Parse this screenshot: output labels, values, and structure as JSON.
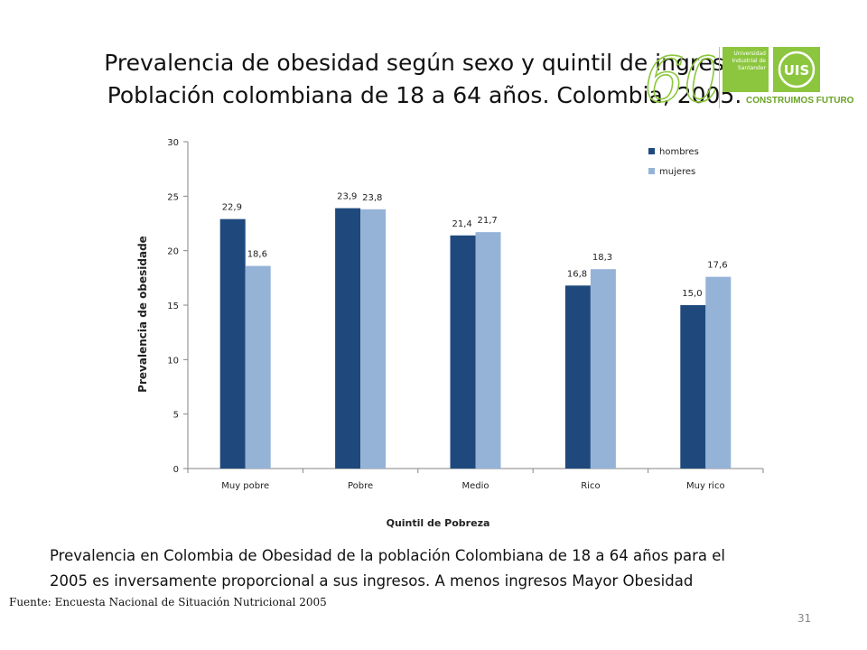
{
  "slide": {
    "title_line1": "Prevalencia de obesidad según sexo y quintil de ingreso.",
    "title_line2": "Población colombiana de 18 a 64 años. Colombia, 2005.",
    "note_line1": "Prevalencia en Colombia de Obesidad de la población Colombiana de 18 a 64 años para el",
    "note_line2": "2005 es inversamente proporcional a sus  ingresos. A menos ingresos Mayor Obesidad",
    "source": "Fuente: Encuesta Nacional de Situación Nutricional 2005",
    "page_number": "31"
  },
  "logos": {
    "anniversary": "60",
    "university": "Universidad Industrial de Santander",
    "univ_line1": "Universidad",
    "univ_line2": "Industrial de",
    "univ_line3": "Santander",
    "uis": "UIS",
    "slogan": "CONSTRUIMOS FUTURO",
    "green": "#8cc63e"
  },
  "chart_data": {
    "type": "bar",
    "categories": [
      "Muy pobre",
      "Pobre",
      "Medio",
      "Rico",
      "Muy rico"
    ],
    "series": [
      {
        "name": "hombres",
        "values": [
          22.9,
          23.9,
          21.4,
          16.8,
          15.0
        ],
        "labels": [
          "22,9",
          "23,9",
          "21,4",
          "16,8",
          "15,0"
        ],
        "color": "#1f497d"
      },
      {
        "name": "mujeres",
        "values": [
          18.6,
          23.8,
          21.7,
          18.3,
          17.6
        ],
        "labels": [
          "18,6",
          "23,8",
          "21,7",
          "18,3",
          "17,6"
        ],
        "color": "#95b3d7"
      }
    ],
    "xlabel": "Quintil de Pobreza",
    "ylabel": "Prevalencia de obesidade",
    "ylim": [
      0,
      30
    ],
    "yticks": [
      0,
      5,
      10,
      15,
      20,
      25,
      30
    ],
    "grid": false,
    "legend": "top-right"
  }
}
